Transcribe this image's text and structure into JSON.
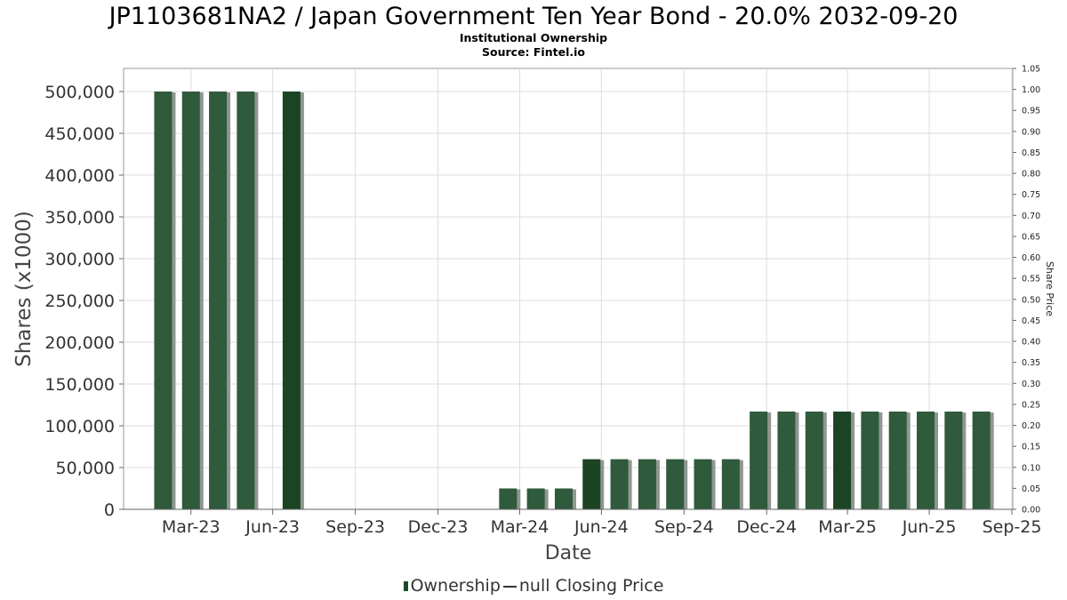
{
  "header": {
    "title": "JP1103681NA2 / Japan Government Ten Year Bond - 20.0% 2032-09-20",
    "subtitle": "Institutional Ownership",
    "source": "Source: Fintel.io"
  },
  "legend": {
    "ownership_label": "Ownership",
    "price_label": "null Closing Price"
  },
  "colors": {
    "bar_primary": "#2f5a3c",
    "bar_dark": "#1b4424",
    "bar_shadow": "#8f9690",
    "grid": "#dddddd",
    "axis": "#666666"
  },
  "chart_data": {
    "type": "bar",
    "title": "JP1103681NA2 / Japan Government Ten Year Bond - 20.0% 2032-09-20",
    "subtitle": "Institutional Ownership",
    "xlabel": "Date",
    "ylabel": "Shares (x1000)",
    "y2label": "Share Price",
    "ylim": [
      0,
      500000
    ],
    "y2lim": [
      0,
      1.05
    ],
    "x_range": [
      "2023-01-15",
      "2025-10-01"
    ],
    "x_ticks": [
      {
        "date": "2023-03-31",
        "label": "Mar-23"
      },
      {
        "date": "2023-06-30",
        "label": "Jun-23"
      },
      {
        "date": "2023-09-30",
        "label": "Sep-23"
      },
      {
        "date": "2023-12-31",
        "label": "Dec-23"
      },
      {
        "date": "2024-03-31",
        "label": "Mar-24"
      },
      {
        "date": "2024-06-30",
        "label": "Jun-24"
      },
      {
        "date": "2024-09-30",
        "label": "Sep-24"
      },
      {
        "date": "2024-12-31",
        "label": "Dec-24"
      },
      {
        "date": "2025-03-31",
        "label": "Mar-25"
      },
      {
        "date": "2025-06-30",
        "label": "Jun-25"
      },
      {
        "date": "2025-09-30",
        "label": "Sep-25"
      }
    ],
    "y_ticks": [
      {
        "value": 0,
        "label": "0"
      },
      {
        "value": 50000,
        "label": "50,000"
      },
      {
        "value": 100000,
        "label": "100,000"
      },
      {
        "value": 150000,
        "label": "150,000"
      },
      {
        "value": 200000,
        "label": "200,000"
      },
      {
        "value": 250000,
        "label": "250,000"
      },
      {
        "value": 300000,
        "label": "300,000"
      },
      {
        "value": 350000,
        "label": "350,000"
      },
      {
        "value": 400000,
        "label": "400,000"
      },
      {
        "value": 450000,
        "label": "450,000"
      },
      {
        "value": 500000,
        "label": "500,000"
      }
    ],
    "y2_ticks": [
      "0.00",
      "0.05",
      "0.10",
      "0.15",
      "0.20",
      "0.25",
      "0.30",
      "0.35",
      "0.40",
      "0.45",
      "0.50",
      "0.55",
      "0.60",
      "0.65",
      "0.70",
      "0.75",
      "0.80",
      "0.85",
      "0.90",
      "0.95",
      "1.00",
      "1.05"
    ],
    "series": [
      {
        "name": "Ownership",
        "points": [
          {
            "date": "2023-02-28",
            "value": 500000
          },
          {
            "date": "2023-03-31",
            "value": 500000
          },
          {
            "date": "2023-04-30",
            "value": 500000
          },
          {
            "date": "2023-05-31",
            "value": 500000
          },
          {
            "date": "2023-07-21",
            "value": 500000,
            "dark": true
          },
          {
            "date": "2024-03-18",
            "value": 25000
          },
          {
            "date": "2024-04-18",
            "value": 25000
          },
          {
            "date": "2024-05-19",
            "value": 25000
          },
          {
            "date": "2024-06-19",
            "value": 60000,
            "dark": true
          },
          {
            "date": "2024-07-20",
            "value": 60000
          },
          {
            "date": "2024-08-20",
            "value": 60000
          },
          {
            "date": "2024-09-20",
            "value": 60000
          },
          {
            "date": "2024-10-21",
            "value": 60000
          },
          {
            "date": "2024-11-21",
            "value": 60000
          },
          {
            "date": "2024-12-22",
            "value": 117000
          },
          {
            "date": "2025-01-22",
            "value": 117000
          },
          {
            "date": "2025-02-22",
            "value": 117000
          },
          {
            "date": "2025-03-25",
            "value": 117000,
            "dark": true
          },
          {
            "date": "2025-04-25",
            "value": 117000
          },
          {
            "date": "2025-05-26",
            "value": 117000
          },
          {
            "date": "2025-06-26",
            "value": 117000
          },
          {
            "date": "2025-07-27",
            "value": 117000
          },
          {
            "date": "2025-08-27",
            "value": 117000
          }
        ]
      }
    ]
  }
}
